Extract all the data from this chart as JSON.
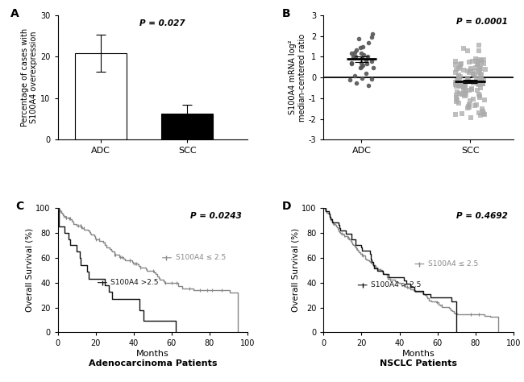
{
  "panel_A": {
    "label": "A",
    "categories": [
      "ADC",
      "SCC"
    ],
    "values": [
      20.8,
      6.2
    ],
    "errors": [
      4.5,
      2.2
    ],
    "colors": [
      "white",
      "black"
    ],
    "ylabel": "Percentage of cases with\nS100A4 overexpression",
    "ylim": [
      0,
      30
    ],
    "yticks": [
      0,
      10,
      20,
      30
    ],
    "pvalue": "P = 0.027"
  },
  "panel_B": {
    "label": "B",
    "ylabel": "S100A4 mRNA log²\nmedian-centered ratio",
    "ylim": [
      -3,
      3
    ],
    "yticks": [
      -3,
      -2,
      -1,
      0,
      1,
      2,
      3
    ],
    "pvalue": "P = 0.0001",
    "adc_mean": 0.88,
    "adc_sem": 0.12,
    "scc_mean": -0.18,
    "scc_sem": 0.07,
    "adc_n": 32,
    "scc_n": 110,
    "adc_color": "#555555",
    "scc_color": "#aaaaaa"
  },
  "panel_C": {
    "label": "C",
    "pvalue": "P = 0.0243",
    "xlabel": "Months",
    "ylabel": "Overall Survival (%)",
    "title": "Adenocarcinoma Patients",
    "ylim": [
      0,
      100
    ],
    "yticks": [
      0,
      20,
      40,
      60,
      80,
      100
    ],
    "xlim": [
      0,
      100
    ],
    "xticks": [
      0,
      20,
      40,
      60,
      80,
      100
    ],
    "legend_low": "S100A4 ≤ 2.5",
    "legend_high": "S100A4 >2.5",
    "low_color": "#888888",
    "high_color": "#111111"
  },
  "panel_D": {
    "label": "D",
    "pvalue": "P = 0.4692",
    "xlabel": "Months",
    "ylabel": "Overall Survival (%)",
    "title": "NSCLC Patients",
    "ylim": [
      0,
      100
    ],
    "yticks": [
      0,
      20,
      40,
      60,
      80,
      100
    ],
    "xlim": [
      0,
      100
    ],
    "xticks": [
      0,
      20,
      40,
      60,
      80,
      100
    ],
    "legend_low": "S100A4 ≤ 2.5",
    "legend_high": "S100A4 > 2.5",
    "low_color": "#888888",
    "high_color": "#111111"
  }
}
